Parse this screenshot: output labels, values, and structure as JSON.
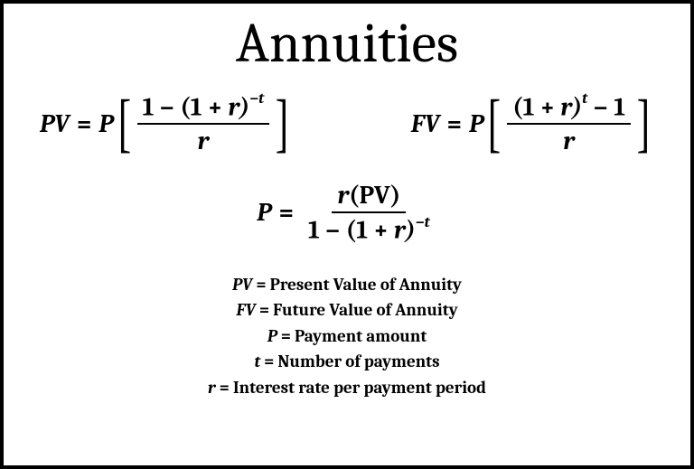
{
  "title": "Annuities",
  "formulas": {
    "pv": {
      "lhs": "PV",
      "coef": "P",
      "numerator_a": "1",
      "numerator_minus": "−",
      "numerator_b_open": "(1",
      "numerator_b_plus": "+",
      "numerator_b_r": "r)",
      "numerator_exp": "−t",
      "denominator": "r"
    },
    "fv": {
      "lhs": "FV",
      "coef": "P",
      "numerator_a_open": "(1",
      "numerator_a_plus": "+",
      "numerator_a_r": "r)",
      "numerator_exp": "t",
      "numerator_minus": "−",
      "numerator_b": "1",
      "denominator": "r"
    },
    "p": {
      "lhs": "P",
      "num_r": "r",
      "num_pv": "(PV)",
      "den_a": "1",
      "den_minus": "−",
      "den_b_open": "(1",
      "den_b_plus": "+",
      "den_b_r": "r)",
      "den_exp": "−t"
    }
  },
  "legend": [
    {
      "var": "PV",
      "desc": "Present Value of Annuity"
    },
    {
      "var": "FV",
      "desc": "Future Value of Annuity"
    },
    {
      "var": "P",
      "desc": "Payment amount"
    },
    {
      "var": "t",
      "desc": "Number of payments"
    },
    {
      "var": "r",
      "desc": "Interest rate per payment period"
    }
  ],
  "style": {
    "border_color": "#000000",
    "background_color": "#ffffff",
    "text_color": "#000000",
    "title_fontsize": 62,
    "formula_fontsize": 28,
    "legend_fontsize": 19,
    "frame_width": 768,
    "frame_height": 519,
    "border_width": 4
  }
}
